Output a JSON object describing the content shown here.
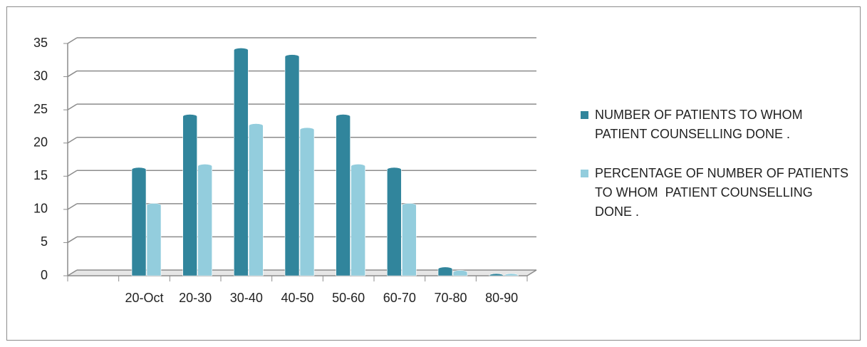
{
  "chart_data": {
    "type": "bar",
    "categories": [
      null,
      "20-Oct",
      "20-30",
      "30-40",
      "40-50",
      "50-60",
      "60-70",
      "70-80",
      "80-90"
    ],
    "series": [
      {
        "name": "NUMBER OF PATIENTS TO WHOM PATIENT COUNSELLING DONE .",
        "color": "#31859c",
        "values": [
          null,
          16,
          24,
          34,
          33,
          24,
          16,
          1,
          0
        ]
      },
      {
        "name": "PERCENTAGE OF NUMBER OF PATIENTS TO WHOM  PATIENT COUNSELLING DONE .",
        "color": "#93cddd",
        "values": [
          null,
          10.6,
          16.5,
          22.6,
          22,
          16.5,
          10.6,
          0.5,
          0
        ]
      }
    ],
    "ylim": [
      0,
      35
    ],
    "yticks": [
      0,
      5,
      10,
      15,
      20,
      25,
      30,
      35
    ],
    "grid": true,
    "legend": "right"
  }
}
